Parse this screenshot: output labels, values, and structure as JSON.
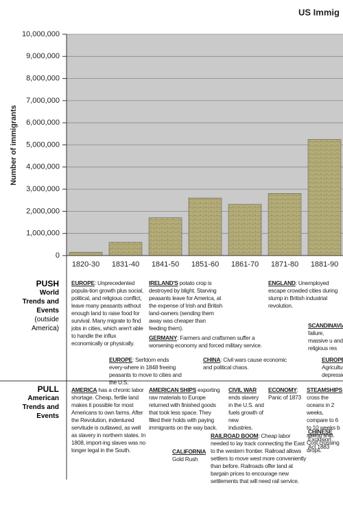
{
  "chart_data": {
    "type": "bar",
    "title": "US Immig",
    "y_label": "Number of immigrants",
    "categories": [
      "1820-30",
      "1831-40",
      "1841-50",
      "1851-60",
      "1861-70",
      "1871-80",
      "1881-90"
    ],
    "values": [
      150000,
      600000,
      1710000,
      2600000,
      2320000,
      2810000,
      5250000
    ],
    "color": "#b5ad78",
    "ylim": [
      0,
      10000000
    ],
    "yticks": [
      0,
      {
        "value": 1000000,
        "label": "1,000,000"
      },
      {
        "value": 2000000,
        "label": "2,000,000"
      },
      {
        "value": 3000000,
        "label": "3,000,000"
      },
      {
        "value": 4000000,
        "label": "4,000,000"
      },
      {
        "value": 5000000,
        "label": "5,000,000"
      },
      {
        "value": 6000000,
        "label": "6,000,000"
      },
      {
        "value": 7000000,
        "label": "7,000,000"
      },
      {
        "value": 8000000,
        "label": "8,000,000"
      },
      {
        "value": 9000000,
        "label": "9,000,000"
      },
      {
        "value": 10000000,
        "label": "10,000,000"
      }
    ],
    "grid": true
  },
  "push": {
    "heading": "PUSH",
    "subheading": "World Trends and Events",
    "note": "(outside America)",
    "blocks": [
      {
        "lead": "EUROPE",
        "text": ": Unprecedented popula-tion growth plus social, political, and religious conflict, leave many peasants without enough land to raise food for survival. Many migrate to find jobs in cities, which aren't able to handle the influx economically or physically."
      },
      {
        "lead": "IRELAND'S",
        "text": " potato crop is destroyed by blight. Starving peasants leave for America, at the expense of Irish and British land-owners (sending them away was cheaper than feeding them)."
      },
      {
        "lead": "GERMANY",
        "text": ": Farmers and craftsmen suffer a worsening economy and forced military service."
      },
      {
        "lead": "ENGLAND",
        "text": ": Unemployed escape crowded cities during slump in British industrial revolution."
      },
      {
        "lead": "SCANDINAVIA",
        "text": "failure, massive u and religious res"
      },
      {
        "lead": "EUROPE",
        "text": ": Serfdom ends every-where in 1848 freeing peasants to move to cities and the U.S."
      },
      {
        "lead": "CHINA",
        "text": ": Civil wars cause economic and political chaos."
      },
      {
        "lead": "EUROPE",
        "text": ": Agricultura depression"
      }
    ]
  },
  "pull": {
    "heading": "PULL",
    "subheading": "American Trends and Events",
    "blocks": [
      {
        "lead": "AMERICA",
        "text": " has a chronic labor shortage. Cheap, fertile land makes it possible for most Americans to own farms. After the Revolution, indentured servitude is outlawed, as well as slavery in northern states. In 1808, import-ing slaves was no longer legal in the South."
      },
      {
        "lead": "AMERICAN SHIPS",
        "text": " exporting raw materials to Europe returned with finished goods that took less space. They filled their holds with paying immigrants on the way back."
      },
      {
        "lead": "CALIFORNIA",
        "text": "Gold Rush"
      },
      {
        "lead": "CIVIL WAR",
        "text": " ends slavery in the U.S. and fuels growth of new industries."
      },
      {
        "lead": "ECONOMY",
        "text": ": Panic of 1873"
      },
      {
        "lead": "RAILROAD BOOM",
        "text": ": Cheap labor needed to lay track connecting the East to the western frontier. Railroad allows settlers to move west more conveniently than before. Railroads offer land at bargain prices to encourage new settlements that will need rail service."
      },
      {
        "lead": "STEAMSHIPS",
        "text": "cross the oceans in 2 weeks, compare to 6 to 10 weeks b sailing ship. Cost crossing drops."
      },
      {
        "lead": "CHINESE",
        "text": "Exclusion Act 1883"
      }
    ]
  }
}
